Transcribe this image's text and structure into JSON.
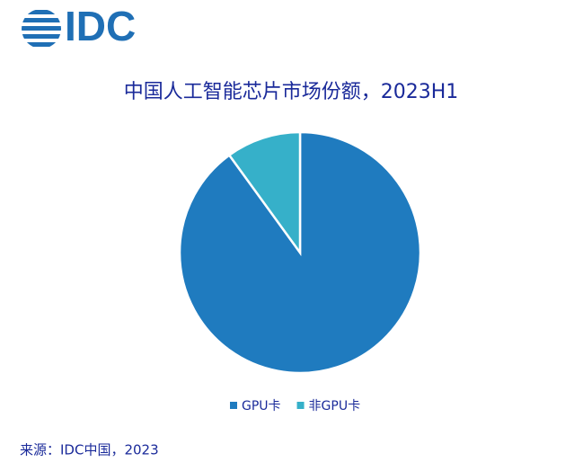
{
  "logo": "IDC",
  "chart_data": {
    "type": "pie",
    "title": "中国人工智能芯片市场份额，2023H1",
    "categories": [
      "GPU卡",
      "非GPU卡"
    ],
    "values": [
      90,
      10
    ],
    "colors": [
      "#1f7bbf",
      "#36b0c9"
    ],
    "legend": "bottom"
  },
  "source": "来源：IDC中国，2023"
}
